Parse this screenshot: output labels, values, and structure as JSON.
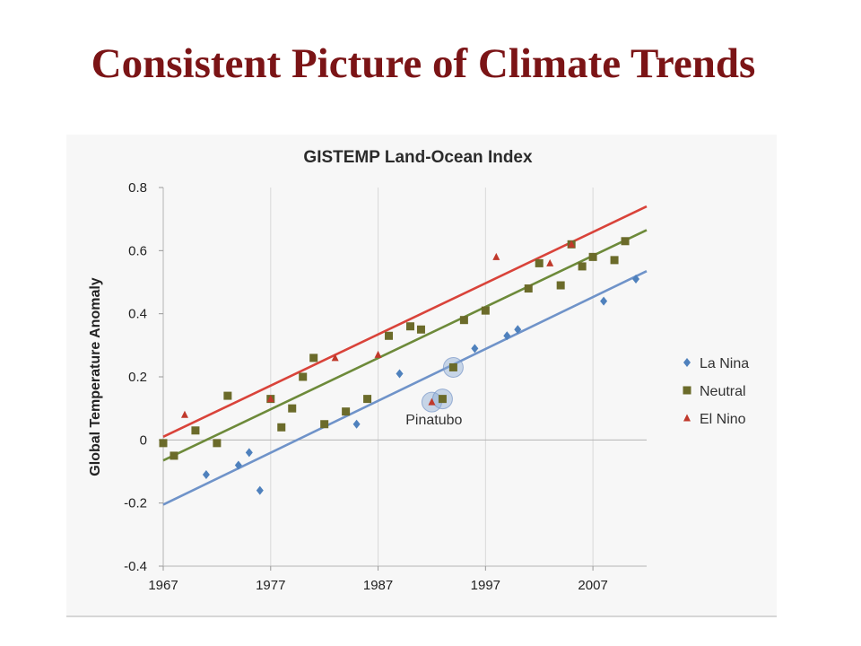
{
  "slide": {
    "title": "Consistent Picture of Climate Trends"
  },
  "chart_data": {
    "type": "scatter",
    "title": "GISTEMP Land-Ocean Index",
    "xlabel": "",
    "ylabel": "Global Temperature Anomaly",
    "xlim": [
      1967,
      2012
    ],
    "ylim": [
      -0.4,
      0.8
    ],
    "x_ticks": [
      "1967",
      "1977",
      "1987",
      "1997",
      "2007"
    ],
    "y_ticks": [
      "0.8",
      "0.6",
      "0.4",
      "0.2",
      "0",
      "-0.2",
      "-0.4"
    ],
    "grid": "vertical",
    "legend_position": "right",
    "series": [
      {
        "name": "La Nina",
        "marker": "diamond",
        "color": "#4f81bd",
        "points": [
          [
            1971,
            -0.11
          ],
          [
            1974,
            -0.08
          ],
          [
            1975,
            -0.04
          ],
          [
            1976,
            -0.16
          ],
          [
            1985,
            0.05
          ],
          [
            1989,
            0.21
          ],
          [
            1996,
            0.29
          ],
          [
            1999,
            0.33
          ],
          [
            2000,
            0.35
          ],
          [
            2008,
            0.44
          ],
          [
            2011,
            0.51
          ]
        ],
        "trend": [
          [
            1967,
            -0.205
          ],
          [
            2012,
            0.535
          ]
        ]
      },
      {
        "name": "Neutral",
        "marker": "square",
        "color": "#6b6b2a",
        "points": [
          [
            1967,
            -0.01
          ],
          [
            1968,
            -0.05
          ],
          [
            1970,
            0.03
          ],
          [
            1972,
            -0.01
          ],
          [
            1973,
            0.14
          ],
          [
            1977,
            0.13
          ],
          [
            1978,
            0.04
          ],
          [
            1979,
            0.1
          ],
          [
            1980,
            0.2
          ],
          [
            1981,
            0.26
          ],
          [
            1982,
            0.05
          ],
          [
            1984,
            0.09
          ],
          [
            1986,
            0.13
          ],
          [
            1988,
            0.33
          ],
          [
            1990,
            0.36
          ],
          [
            1991,
            0.35
          ],
          [
            1993,
            0.13
          ],
          [
            1994,
            0.23
          ],
          [
            1995,
            0.38
          ],
          [
            1997,
            0.41
          ],
          [
            2001,
            0.48
          ],
          [
            2002,
            0.56
          ],
          [
            2004,
            0.49
          ],
          [
            2005,
            0.62
          ],
          [
            2006,
            0.55
          ],
          [
            2007,
            0.58
          ],
          [
            2009,
            0.57
          ],
          [
            2010,
            0.63
          ]
        ],
        "trend": [
          [
            1967,
            -0.065
          ],
          [
            2012,
            0.665
          ]
        ]
      },
      {
        "name": "El Nino",
        "marker": "triangle",
        "color": "#c0392b",
        "points": [
          [
            1969,
            0.08
          ],
          [
            1977,
            0.13
          ],
          [
            1983,
            0.26
          ],
          [
            1987,
            0.27
          ],
          [
            1992,
            0.12
          ],
          [
            1998,
            0.58
          ],
          [
            2003,
            0.56
          ],
          [
            2005,
            0.62
          ]
        ],
        "trend": [
          [
            1967,
            0.01
          ],
          [
            2012,
            0.74
          ]
        ]
      }
    ],
    "annotations": [
      {
        "text": "Pinatubo",
        "x": 1992.2,
        "y": 0.05
      }
    ],
    "highlighted_points": [
      [
        1992,
        0.12
      ],
      [
        1993,
        0.13
      ],
      [
        1994,
        0.23
      ]
    ]
  }
}
